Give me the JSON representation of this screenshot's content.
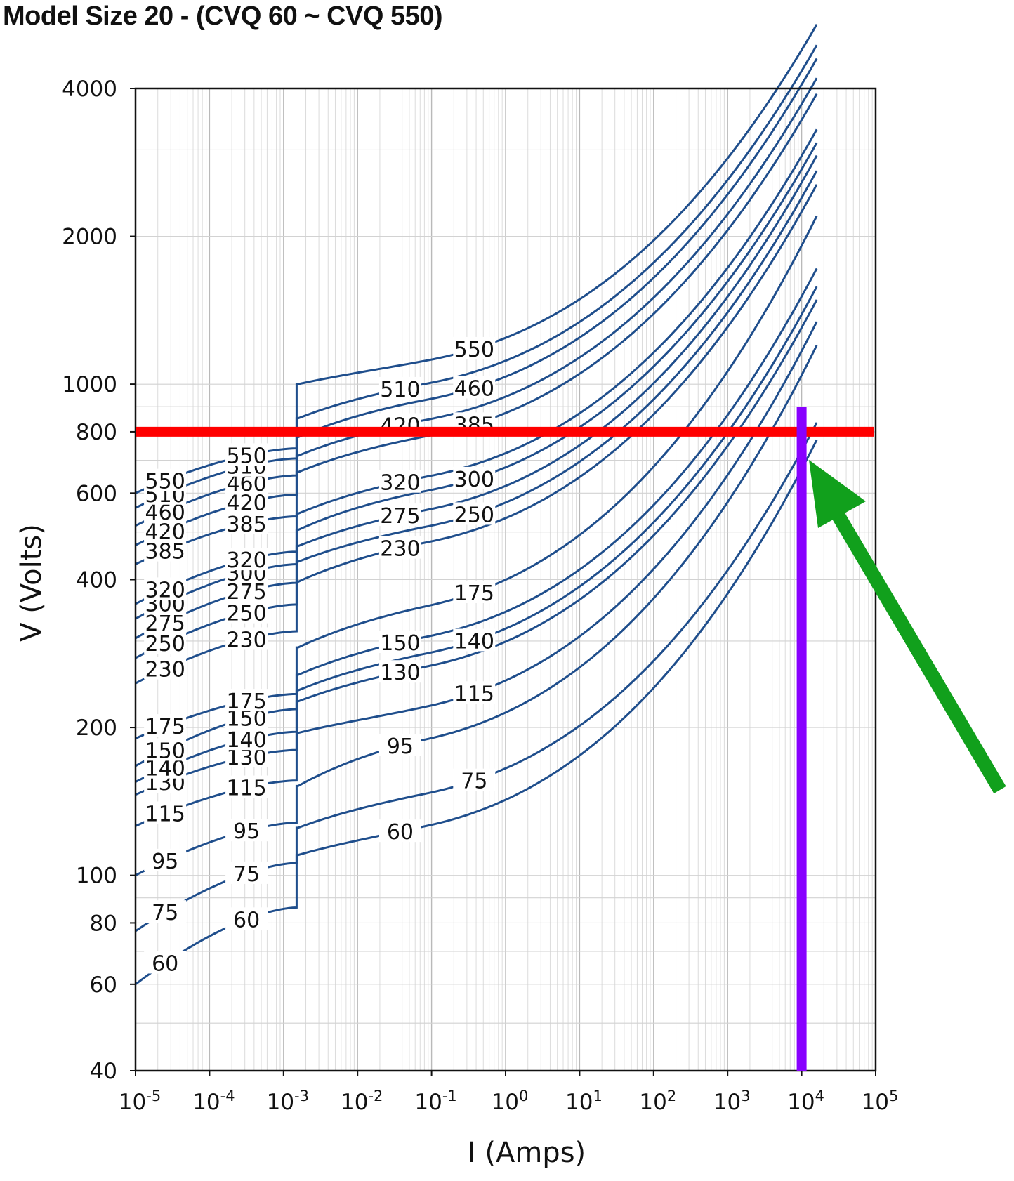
{
  "chart_data": {
    "type": "line",
    "title": "Model Size 20 - (CVQ 60 ~ CVQ 550)",
    "xlabel": "I (Amps)",
    "ylabel": "V (Volts)",
    "x_scale": "log",
    "y_scale": "log",
    "xlim": [
      1e-05,
      100000
    ],
    "ylim": [
      40,
      4000
    ],
    "x_ticks": [
      {
        "base": "10",
        "exp": "-5"
      },
      {
        "base": "10",
        "exp": "-4"
      },
      {
        "base": "10",
        "exp": "-3"
      },
      {
        "base": "10",
        "exp": "-2"
      },
      {
        "base": "10",
        "exp": "-1"
      },
      {
        "base": "10",
        "exp": "0"
      },
      {
        "base": "10",
        "exp": "1"
      },
      {
        "base": "10",
        "exp": "2"
      },
      {
        "base": "10",
        "exp": "3"
      },
      {
        "base": "10",
        "exp": "4"
      },
      {
        "base": "10",
        "exp": "5"
      }
    ],
    "y_ticks": [
      "4000",
      "2000",
      "1000",
      "800",
      "600",
      "400",
      "200",
      "100",
      "80",
      "60",
      "40"
    ],
    "grid": true,
    "series": [
      {
        "name": "60",
        "leakage": {
          "V0": 60,
          "V1": 86
        },
        "clamp": {
          "V0": 110,
          "V1": 120,
          "Vend": 770
        }
      },
      {
        "name": "75",
        "leakage": {
          "V0": 77,
          "V1": 106
        },
        "clamp": {
          "V0": 125,
          "V1": 140,
          "Vend": 835
        }
      },
      {
        "name": "95",
        "leakage": {
          "V0": 100,
          "V1": 128
        },
        "clamp": {
          "V0": 152,
          "V1": 180,
          "Vend": 1200
        }
      },
      {
        "name": "115",
        "leakage": {
          "V0": 126,
          "V1": 156
        },
        "clamp": {
          "V0": 195,
          "V1": 210,
          "Vend": 1340
        }
      },
      {
        "name": "130",
        "leakage": {
          "V0": 146,
          "V1": 180
        },
        "clamp": {
          "V0": 226,
          "V1": 254,
          "Vend": 1485
        }
      },
      {
        "name": "140",
        "leakage": {
          "V0": 155,
          "V1": 196
        },
        "clamp": {
          "V0": 238,
          "V1": 270,
          "Vend": 1580
        }
      },
      {
        "name": "150",
        "leakage": {
          "V0": 167,
          "V1": 218
        },
        "clamp": {
          "V0": 256,
          "V1": 292,
          "Vend": 1720
        }
      },
      {
        "name": "175",
        "leakage": {
          "V0": 190,
          "V1": 234
        },
        "clamp": {
          "V0": 291,
          "V1": 336,
          "Vend": 2200
        }
      },
      {
        "name": "230",
        "leakage": {
          "V0": 246,
          "V1": 314
        },
        "clamp": {
          "V0": 396,
          "V1": 455,
          "Vend": 2550
        }
      },
      {
        "name": "250",
        "leakage": {
          "V0": 277,
          "V1": 356
        },
        "clamp": {
          "V0": 435,
          "V1": 490,
          "Vend": 2720
        }
      },
      {
        "name": "275",
        "leakage": {
          "V0": 304,
          "V1": 394
        },
        "clamp": {
          "V0": 468,
          "V1": 530,
          "Vend": 2920
        }
      },
      {
        "name": "300",
        "leakage": {
          "V0": 333,
          "V1": 430
        },
        "clamp": {
          "V0": 505,
          "V1": 580,
          "Vend": 3100
        }
      },
      {
        "name": "320",
        "leakage": {
          "V0": 357,
          "V1": 456
        },
        "clamp": {
          "V0": 545,
          "V1": 620,
          "Vend": 3300
        }
      },
      {
        "name": "385",
        "leakage": {
          "V0": 430,
          "V1": 538
        },
        "clamp": {
          "V0": 662,
          "V1": 750,
          "Vend": 3900
        }
      },
      {
        "name": "420",
        "leakage": {
          "V0": 470,
          "V1": 596
        },
        "clamp": {
          "V0": 715,
          "V1": 810,
          "Vend": 4200
        }
      },
      {
        "name": "460",
        "leakage": {
          "V0": 515,
          "V1": 652
        },
        "clamp": {
          "V0": 780,
          "V1": 890,
          "Vend": 4600
        }
      },
      {
        "name": "510",
        "leakage": {
          "V0": 560,
          "V1": 706
        },
        "clamp": {
          "V0": 852,
          "V1": 960,
          "Vend": 4900
        }
      },
      {
        "name": "550",
        "leakage": {
          "V0": 600,
          "V1": 740
        },
        "clamp": {
          "V0": 1000,
          "V1": 1070,
          "Vend": 5400
        }
      }
    ],
    "annotations": {
      "horizontal_line": {
        "V": 800,
        "color": "#ff0000"
      },
      "vertical_line": {
        "I": 10000,
        "color": "#8800ff"
      },
      "arrow": {
        "color": "#11a01c"
      }
    }
  }
}
